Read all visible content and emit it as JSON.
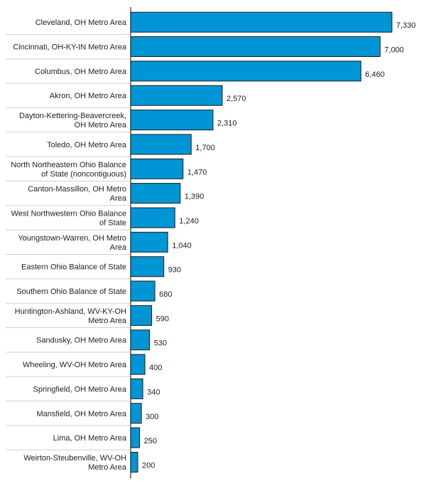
{
  "colors": {
    "bar": "#0096d6"
  },
  "chart_data": {
    "type": "bar",
    "orientation": "horizontal",
    "categories": [
      "Cleveland, OH Metro Area",
      "Cincinnati, OH-KY-IN Metro Area",
      "Columbus, OH Metro Area",
      "Akron, OH Metro Area",
      "Dayton-Kettering-Beavercreek, OH Metro Area",
      "Toledo, OH Metro Area",
      "North Northeastern Ohio Balance of State (noncontiguous)",
      "Canton-Massillon, OH Metro Area",
      "West Northwestern Ohio Balance of State",
      "Youngstown-Warren, OH Metro Area",
      "Eastern Ohio Balance of State",
      "Southern Ohio Balance of State",
      "Huntington-Ashland, WV-KY-OH Metro Area",
      "Sandusky, OH Metro Area",
      "Wheeling, WV-OH Metro Area",
      "Springfield, OH Metro Area",
      "Mansfield, OH Metro Area",
      "Lima, OH Metro Area",
      "Weirton-Steubenville, WV-OH Metro Area"
    ],
    "category_lines": [
      [
        "Cleveland, OH Metro Area"
      ],
      [
        "Cincinnati, OH-KY-IN Metro Area"
      ],
      [
        "Columbus, OH Metro Area"
      ],
      [
        "Akron, OH Metro Area"
      ],
      [
        "Dayton-Kettering-Beavercreek,",
        "OH Metro Area"
      ],
      [
        "Toledo, OH Metro Area"
      ],
      [
        "North Northeastern Ohio Balance",
        "of State (noncontiguous)"
      ],
      [
        "Canton-Massillon, OH Metro",
        "Area"
      ],
      [
        "West Northwestern Ohio Balance",
        "of State"
      ],
      [
        "Youngstown-Warren, OH Metro",
        "Area"
      ],
      [
        "Eastern Ohio Balance of State"
      ],
      [
        "Southern Ohio Balance of State"
      ],
      [
        "Huntington-Ashland, WV-KY-OH",
        "Metro Area"
      ],
      [
        "Sandusky, OH Metro Area"
      ],
      [
        "Wheeling, WV-OH Metro Area"
      ],
      [
        "Springfield, OH Metro Area"
      ],
      [
        "Mansfield, OH Metro Area"
      ],
      [
        "Lima, OH Metro Area"
      ],
      [
        "Weirton-Steubenville, WV-OH",
        "Metro Area"
      ]
    ],
    "values": [
      7330,
      7000,
      6460,
      2570,
      2310,
      1700,
      1470,
      1390,
      1240,
      1040,
      930,
      680,
      590,
      530,
      400,
      340,
      300,
      250,
      200
    ],
    "value_labels": [
      "7,330",
      "7,000",
      "6,460",
      "2,570",
      "2,310",
      "1,700",
      "1,470",
      "1,390",
      "1,240",
      "1,040",
      "930",
      "680",
      "590",
      "530",
      "400",
      "340",
      "300",
      "250",
      "200"
    ],
    "xlim": [
      0,
      7500
    ],
    "grid": false,
    "legend": "none"
  }
}
